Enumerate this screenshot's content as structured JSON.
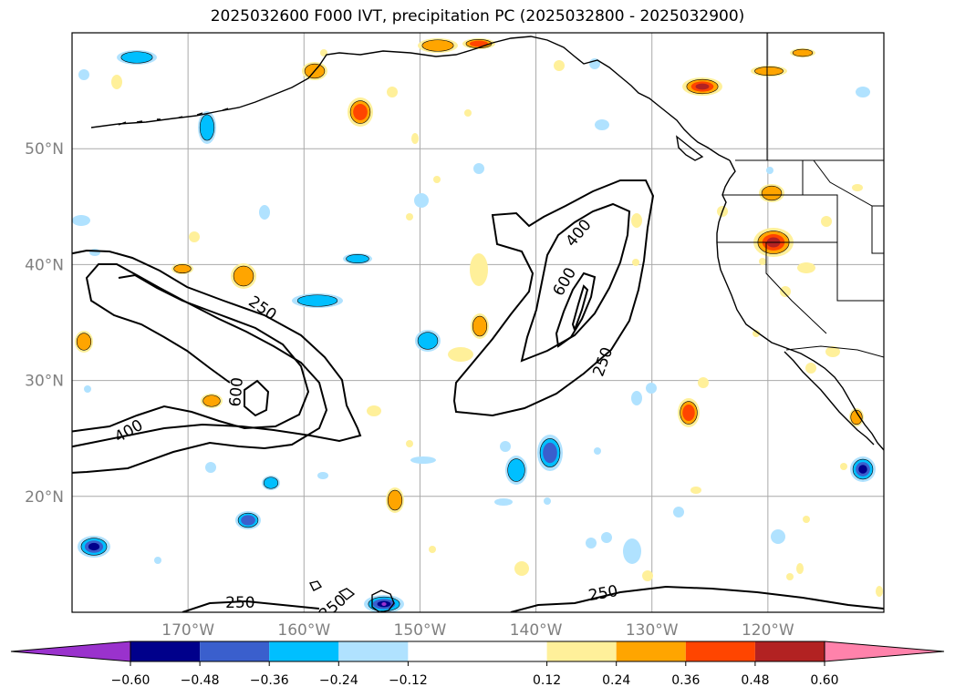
{
  "title": "2025032600 F000 IVT, precipitation PC (2025032800 - 2025032900)",
  "map": {
    "lon_range": [
      -180,
      -110
    ],
    "lat_range": [
      10,
      60
    ],
    "lon_ticks": [
      {
        "value": -170,
        "label": "170°W"
      },
      {
        "value": -160,
        "label": "160°W"
      },
      {
        "value": -150,
        "label": "150°W"
      },
      {
        "value": -140,
        "label": "140°W"
      },
      {
        "value": -130,
        "label": "130°W"
      },
      {
        "value": -120,
        "label": "120°W"
      }
    ],
    "lat_ticks": [
      {
        "value": 20,
        "label": "20°N"
      },
      {
        "value": 30,
        "label": "30°N"
      },
      {
        "value": 40,
        "label": "40°N"
      },
      {
        "value": 50,
        "label": "50°N"
      }
    ],
    "grid": true
  },
  "ivt_contours": {
    "levels": [
      250,
      400,
      600
    ],
    "labels": [
      {
        "text": "250",
        "lon": -163.6,
        "lat": 36.2,
        "angle": 35
      },
      {
        "text": "400",
        "lon": -175.1,
        "lat": 25.6,
        "angle": -30
      },
      {
        "text": "600",
        "lon": -165.8,
        "lat": 29.0,
        "angle": -85
      },
      {
        "text": "400",
        "lon": -136.3,
        "lat": 42.7,
        "angle": -50
      },
      {
        "text": "600",
        "lon": -137.5,
        "lat": 38.5,
        "angle": -60
      },
      {
        "text": "250",
        "lon": -134.2,
        "lat": 31.6,
        "angle": -70
      },
      {
        "text": "250",
        "lon": -165.5,
        "lat": 10.8,
        "angle": 0
      },
      {
        "text": "250",
        "lon": -134.2,
        "lat": 11.6,
        "angle": -10
      },
      {
        "text": "250",
        "lon": -157.5,
        "lat": 10.4,
        "angle": -40
      }
    ]
  },
  "colorbar": {
    "boundaries": [
      -0.72,
      -0.6,
      -0.48,
      -0.36,
      -0.24,
      -0.12,
      0.12,
      0.24,
      0.36,
      0.48,
      0.6,
      0.72
    ],
    "colors": [
      "#9a32cd",
      "#00008b",
      "#3a5fcd",
      "#00bfff",
      "#b0e2ff",
      "#ffffff",
      "#fff09a",
      "#ffa500",
      "#ff4500",
      "#b22222",
      "#ff82ab"
    ],
    "tick_labels": [
      "−0.60",
      "−0.48",
      "−0.36",
      "−0.24",
      "−0.12",
      "0.12",
      "0.24",
      "0.36",
      "0.48",
      "0.60"
    ],
    "extend": "both"
  }
}
